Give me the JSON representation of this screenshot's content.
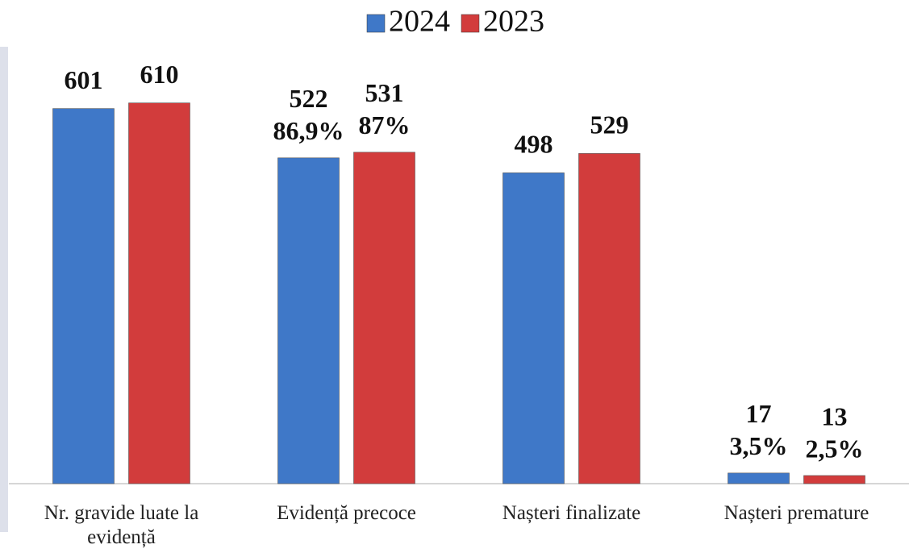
{
  "chart_data": {
    "type": "bar",
    "categories": [
      "Nr. gravide luate la evidență",
      "Evidență precoce",
      "Nașteri finalizate",
      "Nașteri premature"
    ],
    "series": [
      {
        "name": "2024",
        "color": "#3f78c8",
        "values": [
          601,
          522,
          498,
          17
        ],
        "shares": [
          null,
          86.9,
          null,
          3.5
        ],
        "share_labels": [
          null,
          "86,9%",
          null,
          "3,5%"
        ]
      },
      {
        "name": "2023",
        "color": "#d23c3c",
        "values": [
          610,
          531,
          529,
          13
        ],
        "shares": [
          null,
          87,
          null,
          2.5
        ],
        "share_labels": [
          null,
          "87%",
          null,
          "2,5%"
        ]
      }
    ],
    "ylim": [
      0,
      700
    ],
    "legend": "top"
  }
}
